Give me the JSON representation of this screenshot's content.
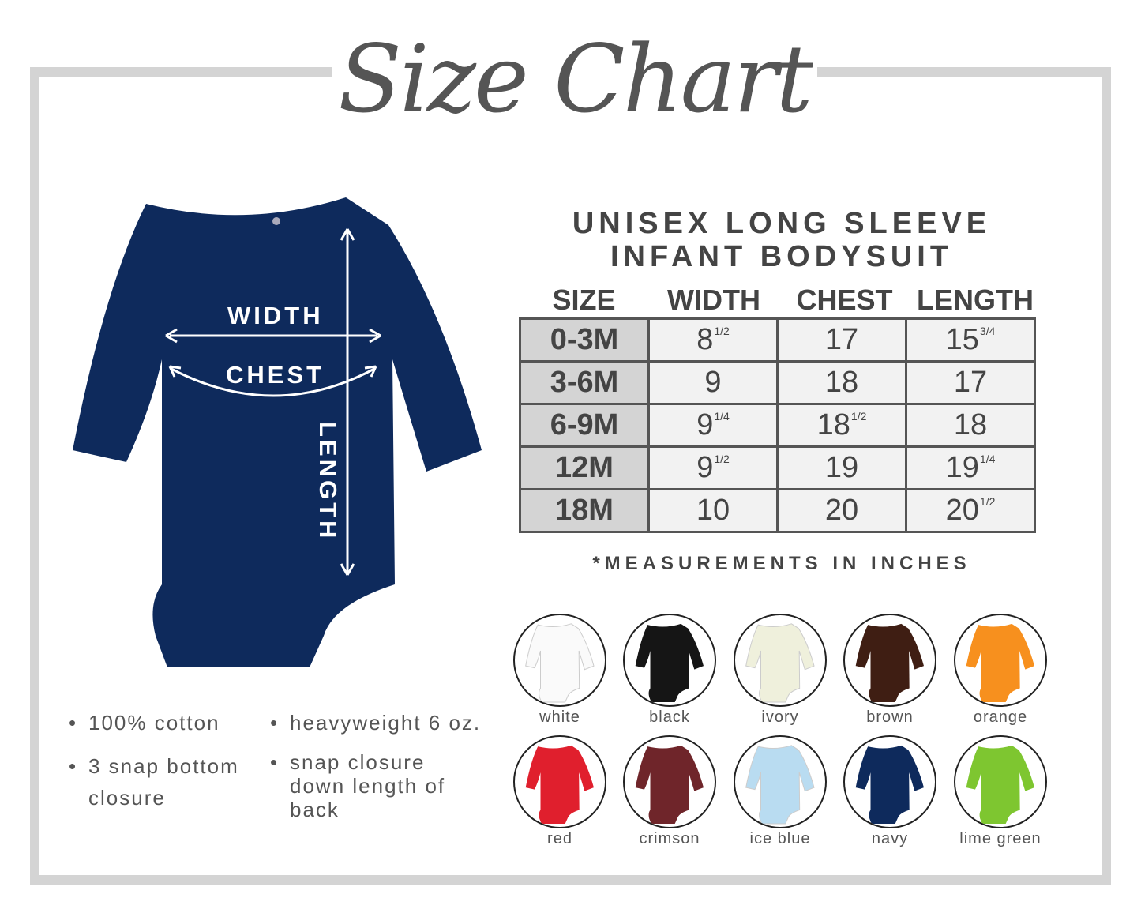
{
  "title": "Size Chart",
  "heading": {
    "line1": "UNISEX LONG SLEEVE",
    "line2": "INFANT BODYSUIT"
  },
  "table": {
    "columns": [
      "SIZE",
      "WIDTH",
      "CHEST",
      "LENGTH"
    ],
    "rows": [
      {
        "size": "0-3M",
        "width": {
          "whole": "8",
          "frac": "1/2"
        },
        "chest": {
          "whole": "17",
          "frac": ""
        },
        "length": {
          "whole": "15",
          "frac": "3/4"
        }
      },
      {
        "size": "3-6M",
        "width": {
          "whole": "9",
          "frac": ""
        },
        "chest": {
          "whole": "18",
          "frac": ""
        },
        "length": {
          "whole": "17",
          "frac": ""
        }
      },
      {
        "size": "6-9M",
        "width": {
          "whole": "9",
          "frac": "1/4"
        },
        "chest": {
          "whole": "18",
          "frac": "1/2"
        },
        "length": {
          "whole": "18",
          "frac": ""
        }
      },
      {
        "size": "12M",
        "width": {
          "whole": "9",
          "frac": "1/2"
        },
        "chest": {
          "whole": "19",
          "frac": ""
        },
        "length": {
          "whole": "19",
          "frac": "1/4"
        }
      },
      {
        "size": "18M",
        "width": {
          "whole": "10",
          "frac": ""
        },
        "chest": {
          "whole": "20",
          "frac": ""
        },
        "length": {
          "whole": "20",
          "frac": "1/2"
        }
      }
    ],
    "note": "*MEASUREMENTS IN INCHES"
  },
  "diagram": {
    "width_label": "WIDTH",
    "chest_label": "CHEST",
    "length_label": "LENGTH",
    "garment_color": "#0e2a5c"
  },
  "features": {
    "left": [
      "100% cotton",
      "3 snap bottom closure"
    ],
    "right": [
      "heavyweight 6 oz.",
      "snap closure down length of back"
    ]
  },
  "colors": [
    {
      "name": "white",
      "hex": "#fafafa"
    },
    {
      "name": "black",
      "hex": "#151515"
    },
    {
      "name": "ivory",
      "hex": "#eff0dc"
    },
    {
      "name": "brown",
      "hex": "#3f1e13"
    },
    {
      "name": "orange",
      "hex": "#f7901e"
    },
    {
      "name": "red",
      "hex": "#e01f2d"
    },
    {
      "name": "crimson",
      "hex": "#6f252a"
    },
    {
      "name": "ice blue",
      "hex": "#b9dcf1"
    },
    {
      "name": "navy",
      "hex": "#0e2a5c"
    },
    {
      "name": "lime green",
      "hex": "#7ec630"
    }
  ]
}
